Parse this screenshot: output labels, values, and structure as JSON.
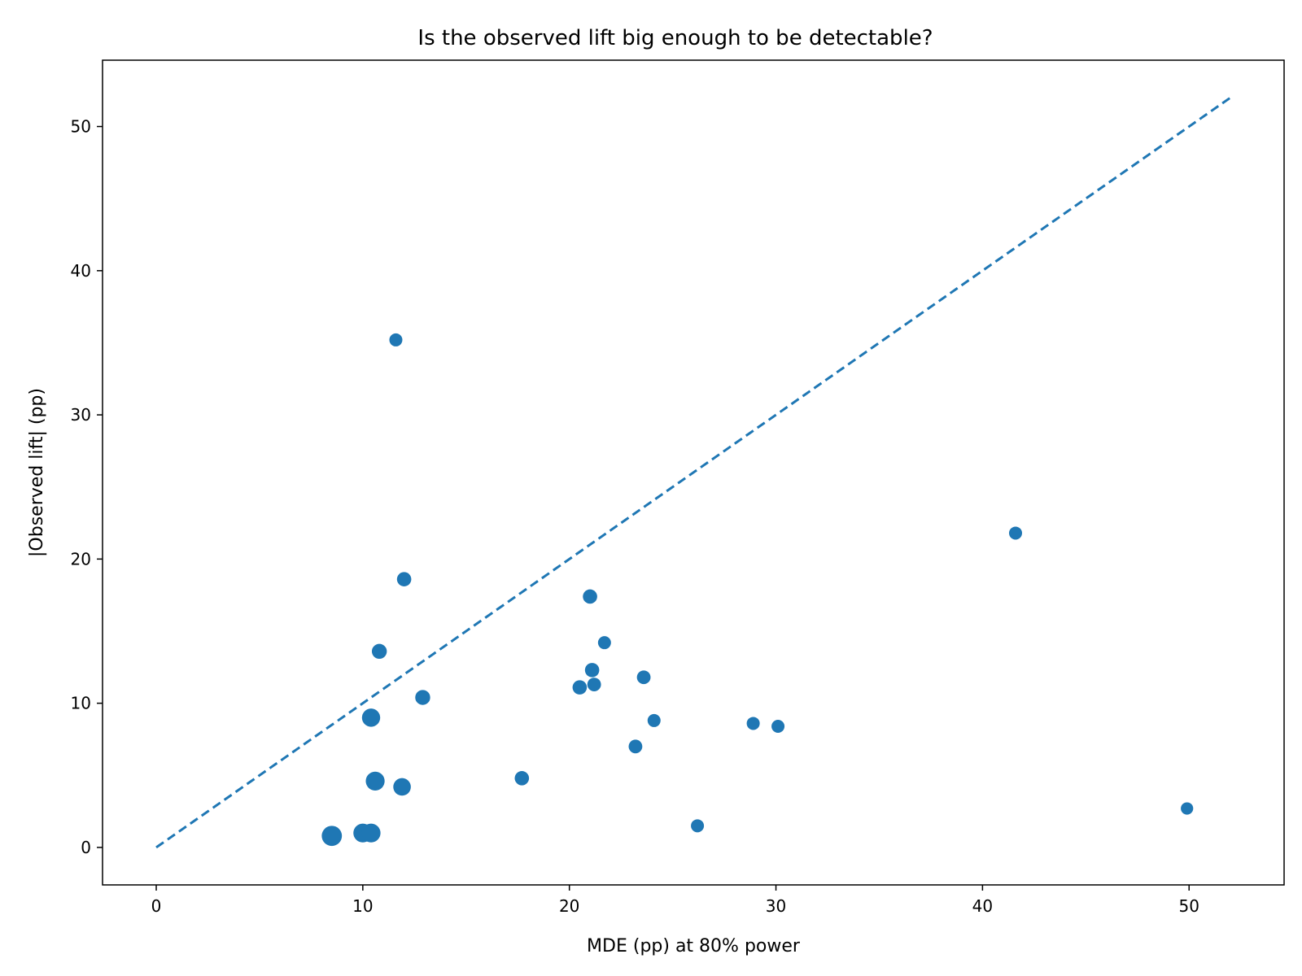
{
  "chart_data": {
    "type": "scatter",
    "title": "Is the observed lift big enough to be detectable?",
    "xlabel": "MDE (pp) at 80% power",
    "ylabel": "|Observed lift| (pp)",
    "xlim": [
      -2.6,
      54.6
    ],
    "ylim": [
      -2.6,
      54.6
    ],
    "xticks": [
      0,
      10,
      20,
      30,
      40,
      50
    ],
    "yticks": [
      0,
      10,
      20,
      30,
      40,
      50
    ],
    "grid": false,
    "colors": {
      "marker": "#1f77b4",
      "reference_line": "#1f77b4",
      "axes": "#000000"
    },
    "reference_line": {
      "style": "dashed",
      "x": [
        0,
        52
      ],
      "y": [
        0,
        52
      ]
    },
    "points": [
      {
        "x": 11.6,
        "y": 35.2,
        "r": 1.0
      },
      {
        "x": 41.6,
        "y": 21.8,
        "r": 1.0
      },
      {
        "x": 12.0,
        "y": 18.6,
        "r": 1.1
      },
      {
        "x": 21.0,
        "y": 17.4,
        "r": 1.1
      },
      {
        "x": 21.7,
        "y": 14.2,
        "r": 1.0
      },
      {
        "x": 10.8,
        "y": 13.6,
        "r": 1.15
      },
      {
        "x": 21.1,
        "y": 12.3,
        "r": 1.1
      },
      {
        "x": 23.6,
        "y": 11.8,
        "r": 1.05
      },
      {
        "x": 21.2,
        "y": 11.3,
        "r": 1.05
      },
      {
        "x": 20.5,
        "y": 11.1,
        "r": 1.1
      },
      {
        "x": 12.9,
        "y": 10.4,
        "r": 1.15
      },
      {
        "x": 10.4,
        "y": 9.0,
        "r": 1.4
      },
      {
        "x": 24.1,
        "y": 8.8,
        "r": 1.0
      },
      {
        "x": 28.9,
        "y": 8.6,
        "r": 1.0
      },
      {
        "x": 30.1,
        "y": 8.4,
        "r": 1.0
      },
      {
        "x": 23.2,
        "y": 7.0,
        "r": 1.05
      },
      {
        "x": 17.7,
        "y": 4.8,
        "r": 1.1
      },
      {
        "x": 10.6,
        "y": 4.6,
        "r": 1.45
      },
      {
        "x": 11.9,
        "y": 4.2,
        "r": 1.35
      },
      {
        "x": 49.9,
        "y": 2.7,
        "r": 0.95
      },
      {
        "x": 26.2,
        "y": 1.5,
        "r": 1.0
      },
      {
        "x": 10.0,
        "y": 1.0,
        "r": 1.45
      },
      {
        "x": 10.4,
        "y": 1.0,
        "r": 1.45
      },
      {
        "x": 8.5,
        "y": 0.8,
        "r": 1.55
      }
    ]
  }
}
